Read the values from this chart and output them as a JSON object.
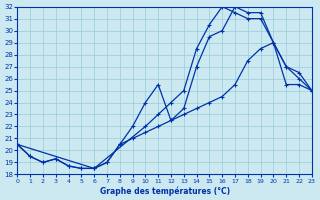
{
  "xlabel": "Graphe des températures (°C)",
  "bg_color": "#cce8f0",
  "grid_color": "#99ccd9",
  "line_color": "#0033aa",
  "xmin": 0,
  "xmax": 23,
  "ymin": 18,
  "ymax": 32,
  "curve1_x": [
    0,
    1,
    2,
    3,
    4,
    5,
    6,
    7,
    8,
    9,
    10,
    11,
    12,
    13,
    14,
    15,
    16,
    17,
    18,
    19,
    20,
    21,
    22,
    23
  ],
  "curve1_y": [
    20.5,
    19.5,
    19.0,
    19.3,
    18.7,
    18.5,
    18.5,
    19.0,
    20.5,
    22.0,
    24.0,
    25.5,
    22.5,
    23.5,
    27.0,
    29.5,
    30.0,
    32.0,
    31.5,
    31.5,
    29.0,
    25.5,
    25.5,
    25.0
  ],
  "curve2_x": [
    0,
    1,
    2,
    3,
    4,
    5,
    6,
    7,
    8,
    9,
    10,
    11,
    12,
    13,
    14,
    15,
    16,
    17,
    18,
    19,
    20,
    21,
    22,
    23
  ],
  "curve2_y": [
    20.5,
    19.5,
    19.0,
    19.3,
    18.7,
    18.5,
    18.5,
    19.0,
    20.5,
    21.0,
    21.5,
    22.0,
    22.5,
    23.0,
    23.5,
    24.0,
    24.5,
    25.5,
    27.5,
    28.5,
    29.0,
    27.0,
    26.0,
    25.0
  ],
  "curve3_x": [
    0,
    6,
    10,
    11,
    12,
    13,
    14,
    15,
    16,
    17,
    18,
    19,
    20,
    21,
    22,
    23
  ],
  "curve3_y": [
    20.5,
    18.5,
    22.0,
    23.0,
    24.0,
    25.0,
    28.5,
    30.5,
    32.0,
    31.5,
    31.0,
    31.0,
    29.0,
    27.0,
    26.5,
    25.0
  ]
}
